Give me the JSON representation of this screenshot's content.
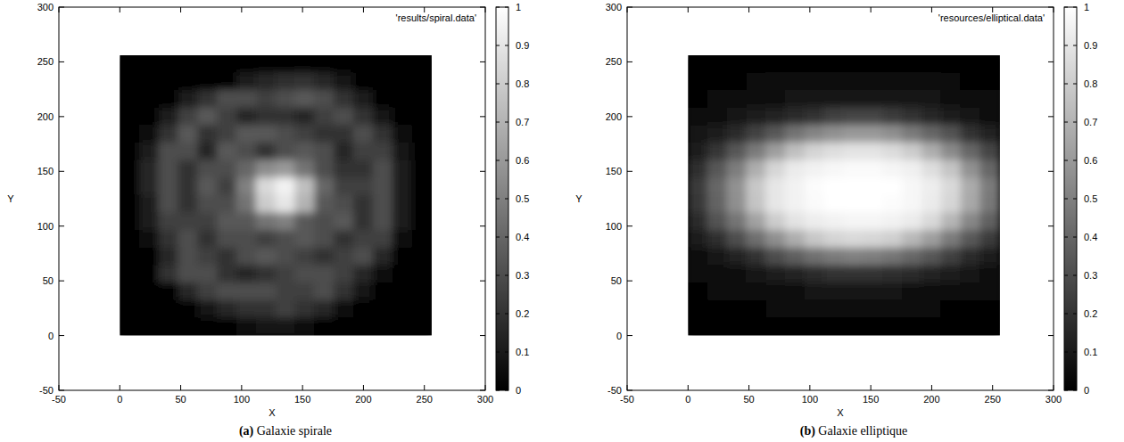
{
  "chart_data": [
    {
      "type": "heatmap",
      "title": "(a) Galaxie spirale",
      "x_label": "X",
      "y_label": "Y",
      "xlim": [
        -50,
        300
      ],
      "xticks": [
        -50,
        0,
        50,
        100,
        150,
        200,
        250,
        300
      ],
      "ylim": [
        -50,
        300
      ],
      "yticks": [
        -50,
        0,
        50,
        100,
        150,
        200,
        250,
        300
      ],
      "legend": "top-right",
      "series": [
        {
          "name": "'results/spiral.data'",
          "x_edges": [
            0,
            16,
            32,
            48,
            64,
            80,
            96,
            112,
            128,
            144,
            160,
            176,
            192,
            208,
            224,
            240,
            256
          ],
          "y_edges": [
            256,
            240,
            224,
            208,
            192,
            176,
            160,
            144,
            128,
            112,
            96,
            80,
            64,
            48,
            32,
            16,
            0
          ],
          "cells": [
            [
              0,
              0,
              0,
              0,
              0,
              0,
              0,
              0,
              0,
              0,
              0,
              0,
              0,
              0,
              0,
              0
            ],
            [
              0,
              0,
              0,
              0,
              0,
              0,
              0.1,
              0.15,
              0.18,
              0.2,
              0.15,
              0.08,
              0,
              0,
              0,
              0
            ],
            [
              0,
              0,
              0,
              0.1,
              0.2,
              0.3,
              0.3,
              0.25,
              0.3,
              0.35,
              0.3,
              0.2,
              0.1,
              0,
              0,
              0
            ],
            [
              0,
              0,
              0.1,
              0.25,
              0.35,
              0.25,
              0.15,
              0.2,
              0.2,
              0.15,
              0.25,
              0.3,
              0.2,
              0.08,
              0,
              0
            ],
            [
              0,
              0.05,
              0.2,
              0.35,
              0.2,
              0.25,
              0.35,
              0.35,
              0.3,
              0.25,
              0.2,
              0.2,
              0.3,
              0.2,
              0.05,
              0
            ],
            [
              0,
              0.1,
              0.3,
              0.3,
              0.15,
              0.35,
              0.3,
              0.2,
              0.3,
              0.35,
              0.3,
              0.15,
              0.25,
              0.25,
              0.08,
              0
            ],
            [
              0,
              0.15,
              0.3,
              0.2,
              0.3,
              0.3,
              0.4,
              0.55,
              0.6,
              0.45,
              0.3,
              0.2,
              0.2,
              0.3,
              0.1,
              0
            ],
            [
              0,
              0.15,
              0.3,
              0.2,
              0.35,
              0.25,
              0.5,
              0.85,
              0.95,
              0.75,
              0.4,
              0.25,
              0.25,
              0.3,
              0.12,
              0
            ],
            [
              0,
              0.12,
              0.3,
              0.2,
              0.3,
              0.3,
              0.45,
              0.8,
              0.9,
              0.7,
              0.35,
              0.3,
              0.2,
              0.3,
              0.12,
              0
            ],
            [
              0,
              0.1,
              0.25,
              0.25,
              0.25,
              0.35,
              0.35,
              0.45,
              0.5,
              0.35,
              0.3,
              0.35,
              0.2,
              0.3,
              0.1,
              0
            ],
            [
              0,
              0.05,
              0.2,
              0.3,
              0.2,
              0.3,
              0.3,
              0.25,
              0.3,
              0.35,
              0.3,
              0.2,
              0.25,
              0.25,
              0.05,
              0
            ],
            [
              0,
              0.02,
              0.15,
              0.3,
              0.25,
              0.2,
              0.3,
              0.35,
              0.3,
              0.25,
              0.2,
              0.25,
              0.3,
              0.15,
              0.02,
              0
            ],
            [
              0,
              0,
              0.2,
              0.3,
              0.3,
              0.2,
              0.15,
              0.2,
              0.25,
              0.3,
              0.3,
              0.25,
              0.15,
              0.05,
              0,
              0
            ],
            [
              0,
              0,
              0,
              0.15,
              0.25,
              0.3,
              0.3,
              0.3,
              0.25,
              0.25,
              0.3,
              0.2,
              0.08,
              0,
              0,
              0
            ],
            [
              0,
              0,
              0,
              0,
              0.08,
              0.15,
              0.2,
              0.2,
              0.25,
              0.2,
              0.15,
              0.05,
              0,
              0,
              0,
              0
            ],
            [
              0,
              0,
              0,
              0,
              0,
              0,
              0.03,
              0.08,
              0.08,
              0.05,
              0,
              0,
              0,
              0,
              0,
              0
            ]
          ]
        }
      ],
      "colorbar": {
        "range": [
          0,
          1
        ],
        "ticks": [
          0,
          0.1,
          0.2,
          0.3,
          0.4,
          0.5,
          0.6,
          0.7,
          0.8,
          0.9,
          1
        ]
      }
    },
    {
      "type": "heatmap",
      "title": "(b) Galaxie elliptique",
      "x_label": "X",
      "y_label": "Y",
      "xlim": [
        -50,
        300
      ],
      "xticks": [
        -50,
        0,
        50,
        100,
        150,
        200,
        250,
        300
      ],
      "ylim": [
        -50,
        300
      ],
      "yticks": [
        -50,
        0,
        50,
        100,
        150,
        200,
        250,
        300
      ],
      "legend": "top-right",
      "series": [
        {
          "name": "'resources/elliptical.data'",
          "x_edges": [
            0,
            16,
            32,
            48,
            64,
            80,
            96,
            112,
            128,
            144,
            160,
            176,
            192,
            208,
            224,
            240,
            256
          ],
          "y_edges": [
            256,
            240,
            224,
            208,
            192,
            176,
            160,
            144,
            128,
            112,
            96,
            80,
            64,
            48,
            32,
            16,
            0
          ],
          "cells": [
            [
              0.01,
              0.01,
              0.01,
              0.01,
              0.02,
              0.02,
              0.02,
              0.02,
              0.02,
              0.02,
              0.02,
              0.02,
              0.02,
              0.01,
              0.01,
              0.01
            ],
            [
              0.01,
              0.02,
              0.02,
              0.03,
              0.03,
              0.04,
              0.04,
              0.04,
              0.04,
              0.04,
              0.04,
              0.04,
              0.03,
              0.03,
              0.02,
              0.02
            ],
            [
              0.02,
              0.03,
              0.04,
              0.05,
              0.06,
              0.08,
              0.08,
              0.09,
              0.09,
              0.09,
              0.09,
              0.08,
              0.07,
              0.06,
              0.05,
              0.04
            ],
            [
              0.04,
              0.05,
              0.08,
              0.1,
              0.14,
              0.17,
              0.2,
              0.25,
              0.27,
              0.27,
              0.23,
              0.19,
              0.15,
              0.11,
              0.08,
              0.06
            ],
            [
              0.07,
              0.11,
              0.17,
              0.26,
              0.35,
              0.45,
              0.52,
              0.57,
              0.6,
              0.6,
              0.56,
              0.48,
              0.4,
              0.32,
              0.2,
              0.14
            ],
            [
              0.12,
              0.21,
              0.34,
              0.48,
              0.62,
              0.75,
              0.83,
              0.87,
              0.89,
              0.89,
              0.86,
              0.8,
              0.68,
              0.54,
              0.4,
              0.27
            ],
            [
              0.18,
              0.34,
              0.49,
              0.68,
              0.84,
              0.92,
              0.95,
              0.97,
              0.98,
              0.98,
              0.96,
              0.94,
              0.87,
              0.77,
              0.57,
              0.4
            ],
            [
              0.23,
              0.4,
              0.57,
              0.78,
              0.9,
              0.95,
              0.99,
              1,
              1,
              1,
              1,
              0.97,
              0.93,
              0.85,
              0.67,
              0.48
            ],
            [
              0.22,
              0.39,
              0.56,
              0.77,
              0.9,
              0.95,
              0.98,
              1,
              1,
              1,
              0.99,
              0.97,
              0.92,
              0.84,
              0.66,
              0.47
            ],
            [
              0.17,
              0.32,
              0.46,
              0.63,
              0.8,
              0.89,
              0.93,
              0.95,
              0.96,
              0.96,
              0.95,
              0.92,
              0.85,
              0.71,
              0.53,
              0.38
            ],
            [
              0.11,
              0.18,
              0.3,
              0.43,
              0.56,
              0.68,
              0.78,
              0.83,
              0.85,
              0.84,
              0.81,
              0.72,
              0.62,
              0.48,
              0.35,
              0.23
            ],
            [
              0.06,
              0.09,
              0.14,
              0.19,
              0.3,
              0.37,
              0.44,
              0.48,
              0.5,
              0.49,
              0.46,
              0.4,
              0.34,
              0.25,
              0.17,
              0.11
            ],
            [
              0.03,
              0.04,
              0.06,
              0.08,
              0.11,
              0.14,
              0.17,
              0.19,
              0.2,
              0.2,
              0.18,
              0.16,
              0.13,
              0.1,
              0.07,
              0.05
            ],
            [
              0.02,
              0.03,
              0.03,
              0.04,
              0.05,
              0.06,
              0.07,
              0.07,
              0.07,
              0.07,
              0.07,
              0.06,
              0.06,
              0.05,
              0.04,
              0.03
            ],
            [
              0.01,
              0.02,
              0.02,
              0.02,
              0.03,
              0.03,
              0.03,
              0.03,
              0.03,
              0.03,
              0.03,
              0.03,
              0.03,
              0.02,
              0.02,
              0.02
            ],
            [
              0.01,
              0.01,
              0.01,
              0.01,
              0.02,
              0.02,
              0.02,
              0.02,
              0.02,
              0.02,
              0.02,
              0.02,
              0.01,
              0.01,
              0.01,
              0.01
            ]
          ]
        }
      ],
      "colorbar": {
        "range": [
          0,
          1
        ],
        "ticks": [
          0,
          0.1,
          0.2,
          0.3,
          0.4,
          0.5,
          0.6,
          0.7,
          0.8,
          0.9,
          1
        ]
      }
    }
  ]
}
